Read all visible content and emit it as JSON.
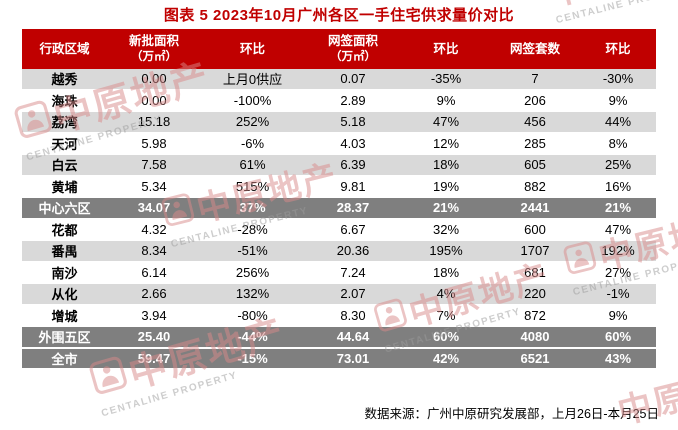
{
  "chart_data": {
    "type": "table",
    "title": "图表 5  2023年10月广州各区一手住宅供求量价对比",
    "columns": [
      {
        "label": "行政区域",
        "sub": ""
      },
      {
        "label": "新批面积",
        "sub": "（万㎡）"
      },
      {
        "label": "环比",
        "sub": ""
      },
      {
        "label": "网签面积",
        "sub": "（万㎡）"
      },
      {
        "label": "环比",
        "sub": ""
      },
      {
        "label": "网签套数",
        "sub": ""
      },
      {
        "label": "环比",
        "sub": ""
      }
    ],
    "rows": [
      {
        "region": "越秀",
        "style": "gray",
        "values": [
          "0.00",
          "上月0供应",
          "0.07",
          "-35%",
          "7",
          "-30%"
        ]
      },
      {
        "region": "海珠",
        "style": "white",
        "values": [
          "0.00",
          "-100%",
          "2.89",
          "9%",
          "206",
          "9%"
        ]
      },
      {
        "region": "荔湾",
        "style": "gray",
        "values": [
          "15.18",
          "252%",
          "5.18",
          "47%",
          "456",
          "44%"
        ]
      },
      {
        "region": "天河",
        "style": "white",
        "values": [
          "5.98",
          "-6%",
          "4.03",
          "12%",
          "285",
          "8%"
        ]
      },
      {
        "region": "白云",
        "style": "gray",
        "values": [
          "7.58",
          "61%",
          "6.39",
          "18%",
          "605",
          "25%"
        ]
      },
      {
        "region": "黄埔",
        "style": "white",
        "values": [
          "5.34",
          "515%",
          "9.81",
          "19%",
          "882",
          "16%"
        ]
      },
      {
        "region": "中心六区",
        "style": "summary",
        "values": [
          "34.07",
          "37%",
          "28.37",
          "21%",
          "2441",
          "21%"
        ]
      },
      {
        "region": "花都",
        "style": "white",
        "values": [
          "4.32",
          "-28%",
          "6.67",
          "32%",
          "600",
          "47%"
        ]
      },
      {
        "region": "番禺",
        "style": "gray",
        "values": [
          "8.34",
          "-51%",
          "20.36",
          "195%",
          "1707",
          "192%"
        ]
      },
      {
        "region": "南沙",
        "style": "white",
        "values": [
          "6.14",
          "256%",
          "7.24",
          "18%",
          "681",
          "27%"
        ]
      },
      {
        "region": "从化",
        "style": "gray",
        "values": [
          "2.66",
          "132%",
          "2.07",
          "4%",
          "220",
          "-1%"
        ]
      },
      {
        "region": "增城",
        "style": "white",
        "values": [
          "3.94",
          "-80%",
          "8.30",
          "7%",
          "872",
          "9%"
        ]
      },
      {
        "region": "外围五区",
        "style": "summary",
        "values": [
          "25.40",
          "-44%",
          "44.64",
          "60%",
          "4080",
          "60%"
        ]
      },
      {
        "region": "全市",
        "style": "summary",
        "values": [
          "59.47",
          "-15%",
          "73.01",
          "42%",
          "6521",
          "43%"
        ]
      }
    ],
    "source_note": "数据来源：广州中原研究发展部，上月26日-本月25日"
  },
  "watermark": {
    "cn": "中原地产",
    "en": "CENTALINE PROPERTY"
  },
  "colors": {
    "accent_red": "#C00000",
    "header_text": "#FFFFFF",
    "row_gray": "#D9D9D9",
    "summary_gray": "#7F7F7F",
    "watermark_pink": "#D98A8A",
    "watermark_gray": "#9C9C9C"
  }
}
